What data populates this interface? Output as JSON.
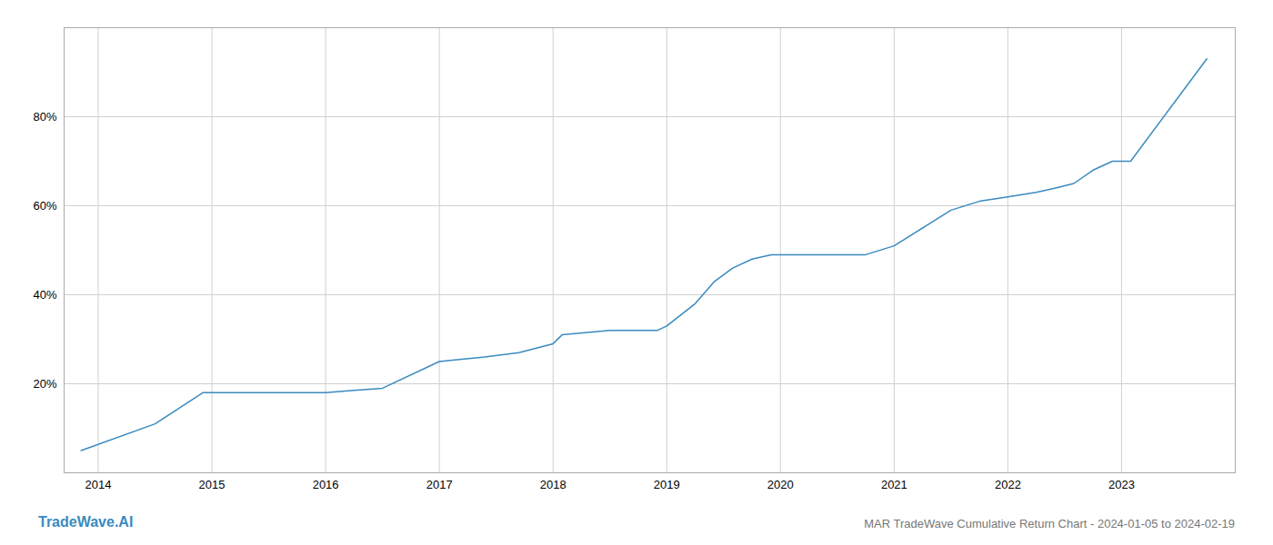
{
  "chart_data": {
    "type": "line",
    "title": "MAR TradeWave Cumulative Return Chart - 2024-01-05 to 2024-02-19",
    "annotations": [
      "TradeWave.AI"
    ],
    "color": "#3a8abf",
    "x": [
      2013.85,
      2014.5,
      2014.92,
      2015.08,
      2015.5,
      2016.0,
      2016.25,
      2016.5,
      2017.0,
      2017.4,
      2017.7,
      2018.0,
      2018.08,
      2018.5,
      2018.92,
      2019.0,
      2019.25,
      2019.42,
      2019.58,
      2019.75,
      2019.92,
      2020.08,
      2020.5,
      2020.75,
      2021.0,
      2021.25,
      2021.5,
      2021.75,
      2022.0,
      2022.25,
      2022.42,
      2022.58,
      2022.75,
      2022.92,
      2023.08,
      2023.75
    ],
    "values": [
      5,
      11,
      18,
      18,
      18,
      18,
      18.5,
      19,
      25,
      26,
      27,
      29,
      31,
      32,
      32,
      33,
      38,
      43,
      46,
      48,
      49,
      49,
      49,
      49,
      51,
      55,
      59,
      61,
      62,
      63,
      64,
      65,
      68,
      70,
      70,
      93
    ],
    "xlim": [
      2013.7,
      2024.0
    ],
    "xticks": [
      2014,
      2015,
      2016,
      2017,
      2018,
      2019,
      2020,
      2021,
      2022,
      2023
    ],
    "ylim": [
      0,
      100
    ],
    "yticks": [
      {
        "value": 20,
        "label": "20%"
      },
      {
        "value": 40,
        "label": "40%"
      },
      {
        "value": 60,
        "label": "60%"
      },
      {
        "value": 80,
        "label": "80%"
      }
    ],
    "grid": true
  }
}
